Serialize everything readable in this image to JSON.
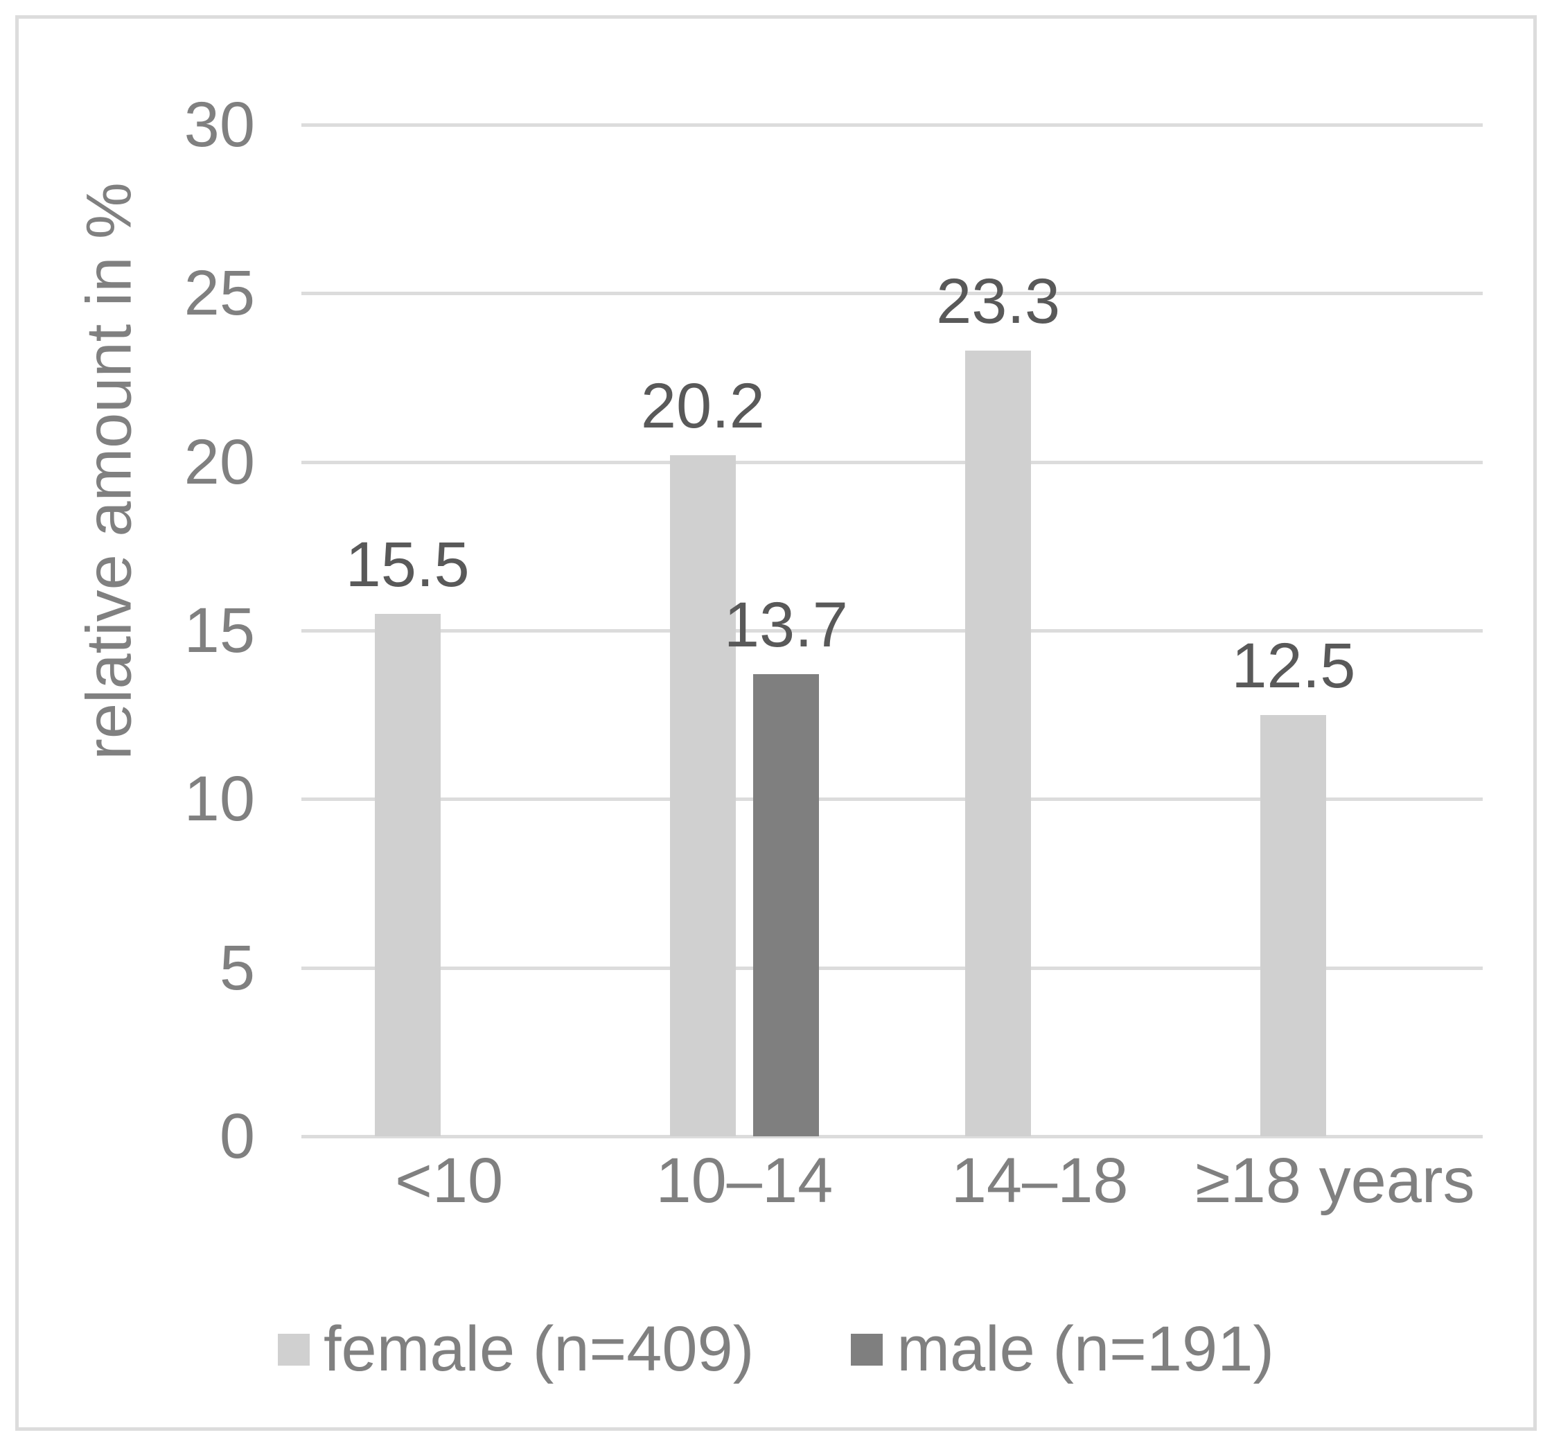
{
  "figure": {
    "background": "#ffffff",
    "border_color": "#dcdcdc"
  },
  "chart_data": {
    "type": "bar",
    "title": "",
    "ylabel": "relative amount in %",
    "xlabel": "",
    "categories": [
      "<10",
      "10–14",
      "14–18",
      "≥18 years"
    ],
    "series": [
      {
        "name": "female (n=409)",
        "color": "#d0d0d0",
        "values": [
          15.5,
          20.2,
          23.3,
          12.5
        ]
      },
      {
        "name": "male (n=191)",
        "color": "#7f7f7f",
        "values": [
          null,
          13.7,
          null,
          null
        ]
      }
    ],
    "data_labels": [
      {
        "series": "female (n=409)",
        "labels": [
          "15.5",
          "20.2",
          "23.3",
          "12.5"
        ]
      },
      {
        "series": "male (n=191)",
        "labels": [
          null,
          "13.7",
          null,
          null
        ]
      }
    ],
    "ylim": [
      0,
      30
    ],
    "yticks": [
      0,
      5,
      10,
      15,
      20,
      25,
      30
    ],
    "grid": true,
    "legend_position": "bottom",
    "colors": {
      "gridline": "#dcdcdc",
      "tick_label": "#808080",
      "axis_title": "#808080",
      "data_label": "#595959",
      "legend_text": "#808080"
    }
  }
}
